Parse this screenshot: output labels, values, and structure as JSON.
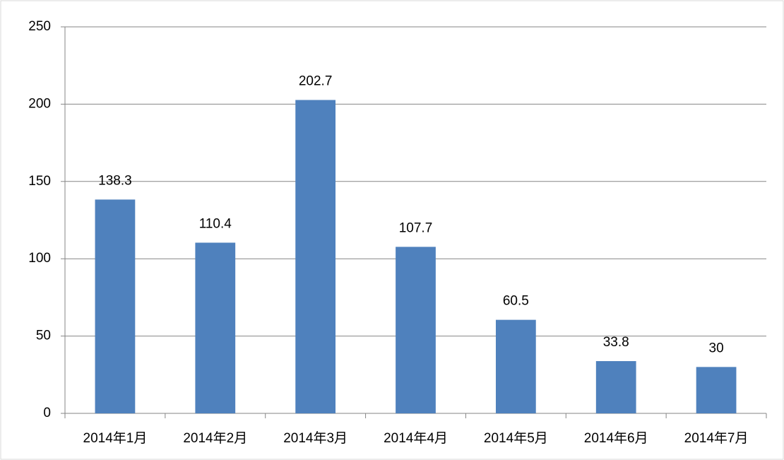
{
  "chart_data": {
    "type": "bar",
    "categories": [
      "2014年1月",
      "2014年2月",
      "2014年3月",
      "2014年4月",
      "2014年5月",
      "2014年6月",
      "2014年7月"
    ],
    "values": [
      138.3,
      110.4,
      202.7,
      107.7,
      60.5,
      33.8,
      30
    ],
    "color": "#4f81bd",
    "ylim": [
      0,
      250
    ],
    "yticks": [
      0,
      50,
      100,
      150,
      200,
      250
    ],
    "grid": true,
    "data_labels": true
  }
}
